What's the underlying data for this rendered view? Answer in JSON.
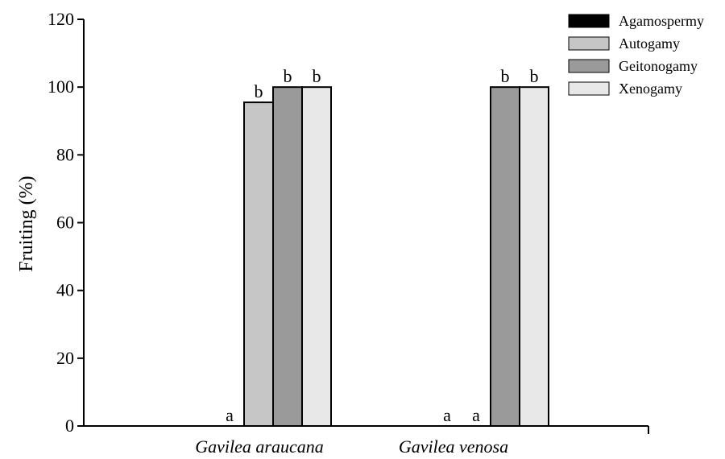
{
  "chart_data": {
    "type": "bar",
    "title": "",
    "xlabel": "",
    "ylabel": "Fruiting (%)",
    "ylim": [
      0,
      120
    ],
    "yticks": [
      "0",
      "20",
      "40",
      "60",
      "80",
      "100",
      "120"
    ],
    "categories": [
      "Gavilea araucana",
      "Gavilea venosa"
    ],
    "legend_position": "top-right",
    "series": [
      {
        "name": "Agamospermy",
        "color": "#000000",
        "values": [
          0,
          0
        ],
        "labels": [
          "a",
          "a"
        ]
      },
      {
        "name": "Autogamy",
        "color": "#c6c6c6",
        "values": [
          95.5,
          0
        ],
        "labels": [
          "b",
          "a"
        ]
      },
      {
        "name": "Geitonogamy",
        "color": "#9a9a9a",
        "values": [
          100,
          100
        ],
        "labels": [
          "b",
          "b"
        ]
      },
      {
        "name": "Xenogamy",
        "color": "#e8e8e8",
        "values": [
          100,
          100
        ],
        "labels": [
          "b",
          "b"
        ]
      }
    ]
  }
}
